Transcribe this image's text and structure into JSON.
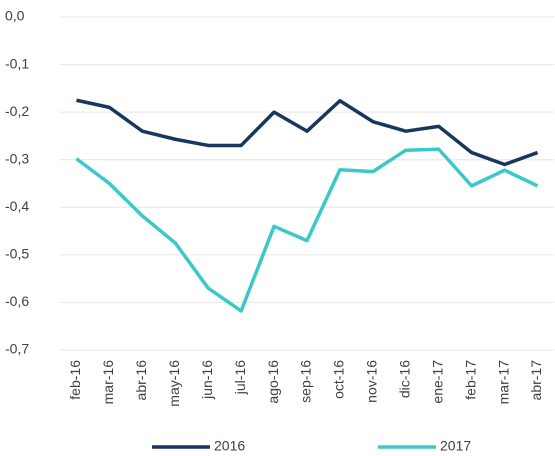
{
  "chart_data": {
    "type": "line",
    "categories": [
      "feb-16",
      "mar-16",
      "abr-16",
      "may-16",
      "jun-16",
      "jul-16",
      "ago-16",
      "sep-16",
      "oct-16",
      "nov-16",
      "dic-16",
      "ene-17",
      "feb-17",
      "mar-17",
      "abr-17"
    ],
    "series": [
      {
        "name": "2016",
        "color": "#17375e",
        "values": [
          -0.175,
          -0.19,
          -0.24,
          -0.257,
          -0.27,
          -0.27,
          -0.2,
          -0.24,
          -0.176,
          -0.22,
          -0.24,
          -0.23,
          -0.285,
          -0.31,
          -0.285
        ]
      },
      {
        "name": "2017",
        "color": "#3cc8c8",
        "values": [
          -0.298,
          -0.35,
          -0.418,
          -0.475,
          -0.57,
          -0.618,
          -0.44,
          -0.47,
          -0.321,
          -0.325,
          -0.28,
          -0.278,
          -0.355,
          -0.322,
          -0.355
        ]
      }
    ],
    "ylim": [
      -0.7,
      0
    ],
    "yticks": [
      {
        "value": 0,
        "label": "0,0"
      },
      {
        "value": -0.1,
        "label": "-0,1"
      },
      {
        "value": -0.2,
        "label": "-0,2"
      },
      {
        "value": -0.3,
        "label": "-0,3"
      },
      {
        "value": -0.4,
        "label": "-0,4"
      },
      {
        "value": -0.5,
        "label": "-0,5"
      },
      {
        "value": -0.6,
        "label": "-0,6"
      },
      {
        "value": -0.7,
        "label": "-0,7"
      }
    ],
    "grid": true,
    "legend": "bottom"
  }
}
